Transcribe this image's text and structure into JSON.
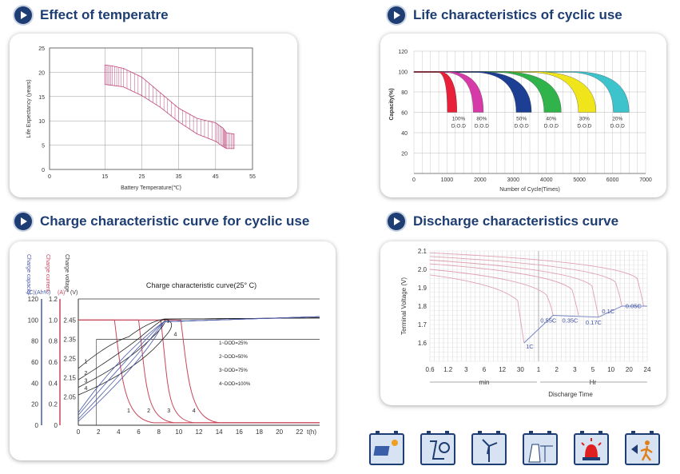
{
  "titles": {
    "temp": "Effect of temperatre",
    "life": "Life characteristics of cyclic use",
    "charge": "Charge characteristic curve for cyclic use",
    "discharge": "Discharge characteristics curve"
  },
  "chart_data": [
    {
      "type": "area",
      "id": "temperature",
      "xlabel": "Battery Temperature(℃)",
      "ylabel": "Life Expectancy (years)",
      "xlim": [
        0,
        55
      ],
      "ylim": [
        0,
        25
      ],
      "xticks": [
        "0",
        "15",
        "25",
        "35",
        "45",
        "55"
      ],
      "yticks": [
        "0",
        "5",
        "10",
        "15",
        "20",
        "25"
      ],
      "series": [
        {
          "x": [
            15,
            17,
            20,
            25,
            30,
            35,
            40,
            45,
            47,
            48,
            50
          ],
          "upper": [
            21.5,
            21.3,
            20.8,
            19.0,
            15.8,
            12.6,
            10.5,
            9.6,
            8.5,
            7.5,
            7.3
          ],
          "lower": [
            17.5,
            17.3,
            17.0,
            15.2,
            12.8,
            9.8,
            7.3,
            5.8,
            4.7,
            4.3,
            4.3
          ]
        }
      ],
      "grid": true
    },
    {
      "type": "line",
      "id": "life",
      "xlabel": "Number of Cycle(Times)",
      "ylabel": "Capacity(%)",
      "xlim": [
        0,
        7000
      ],
      "ylim": [
        0,
        120
      ],
      "xticks": [
        "0",
        "1000",
        "2000",
        "3000",
        "4000",
        "5000",
        "6000",
        "7000"
      ],
      "yticks": [
        "20",
        "40",
        "60",
        "80",
        "100",
        "120"
      ],
      "series": [
        {
          "name": "100% D.O.D",
          "color": "#e8203a",
          "start": 750,
          "end": 1300
        },
        {
          "name": "80% D.O.D",
          "color": "#d63aa8",
          "start": 1000,
          "end": 2100
        },
        {
          "name": "50% D.O.D",
          "color": "#1c3f94",
          "start": 1900,
          "end": 3550
        },
        {
          "name": "40% D.O.D",
          "color": "#2fb34a",
          "start": 2600,
          "end": 4450
        },
        {
          "name": "30% D.O.D",
          "color": "#f0e41a",
          "start": 3600,
          "end": 5500
        },
        {
          "name": "20% D.O.D",
          "color": "#3cc3cc",
          "start": 4800,
          "end": 6500
        }
      ],
      "labels": [
        {
          "pct": "100%",
          "dod": "D.O.D",
          "x": 1350
        },
        {
          "pct": "80%",
          "dod": "D.O.D",
          "x": 2050
        },
        {
          "pct": "50%",
          "dod": "D.O.D",
          "x": 3250
        },
        {
          "pct": "40%",
          "dod": "D.O.D",
          "x": 4150
        },
        {
          "pct": "30%",
          "dod": "D.O.D",
          "x": 5150
        },
        {
          "pct": "20%",
          "dod": "D.O.D",
          "x": 6150
        }
      ],
      "grid": true
    },
    {
      "type": "line",
      "id": "charge",
      "title": "Charge characteristic curve(25° C)",
      "axis_labels": {
        "capacity": "Charge capacity",
        "capacity_unit": "(C)(Ah%)",
        "current": "Charge current",
        "current_unit": "(A)",
        "voltage": "Charge voltage",
        "voltage_unit": "(V)",
        "time": "t(h)"
      },
      "xlim": [
        0,
        24
      ],
      "xticks": [
        "0",
        "2",
        "4",
        "6",
        "8",
        "10",
        "12",
        "14",
        "16",
        "18",
        "20",
        "22"
      ],
      "capacity_ticks": [
        "0",
        "20",
        "40",
        "60",
        "80",
        "100",
        "120"
      ],
      "current_ticks": [
        "0",
        "0.2",
        "0.4",
        "0.6",
        "0.8",
        "1.0",
        "1.2"
      ],
      "voltage_ticks": [
        "2.05",
        "2.15",
        "2.25",
        "2.35",
        "2.45"
      ],
      "legend": [
        "1~DOD=25%",
        "2~DOD=50%",
        "3~DOD=75%",
        "4~DOD=100%"
      ],
      "curve_labels": [
        "1",
        "2",
        "3",
        "4"
      ],
      "voltage_limit": 2.35,
      "voltage_limit_label": "4"
    },
    {
      "type": "line",
      "id": "discharge",
      "xlabel": "Discharge Time",
      "ylabel": "Terminal Voltage  (V)",
      "ylim": [
        1.5,
        2.1
      ],
      "yticks": [
        "1.6",
        "1.7",
        "1.8",
        "1.9",
        "2.0",
        "2.1"
      ],
      "xticks": [
        "0.6",
        "1.2",
        "3",
        "6",
        "12",
        "30",
        "1",
        "2",
        "3",
        "5",
        "10",
        "20",
        "24"
      ],
      "unit_min": "min",
      "unit_hr": "Hr",
      "series": [
        {
          "name": "1C",
          "end_v": 1.6
        },
        {
          "name": "0.55C",
          "end_v": 1.75
        },
        {
          "name": "0.35C",
          "end_v": 1.75
        },
        {
          "name": "0.17C",
          "end_v": 1.74
        },
        {
          "name": "0.1C",
          "end_v": 1.8
        },
        {
          "name": "0.05C",
          "end_v": 1.8
        }
      ]
    }
  ],
  "icons": [
    "solar-panel-icon",
    "telephone-icon",
    "wind-turbine-icon",
    "power-station-icon",
    "alarm-light-icon",
    "emergency-exit-icon"
  ],
  "colors": {
    "title": "#1d3d73",
    "charge_red": "#c8465a",
    "charge_blue": "#4a5aa8"
  }
}
